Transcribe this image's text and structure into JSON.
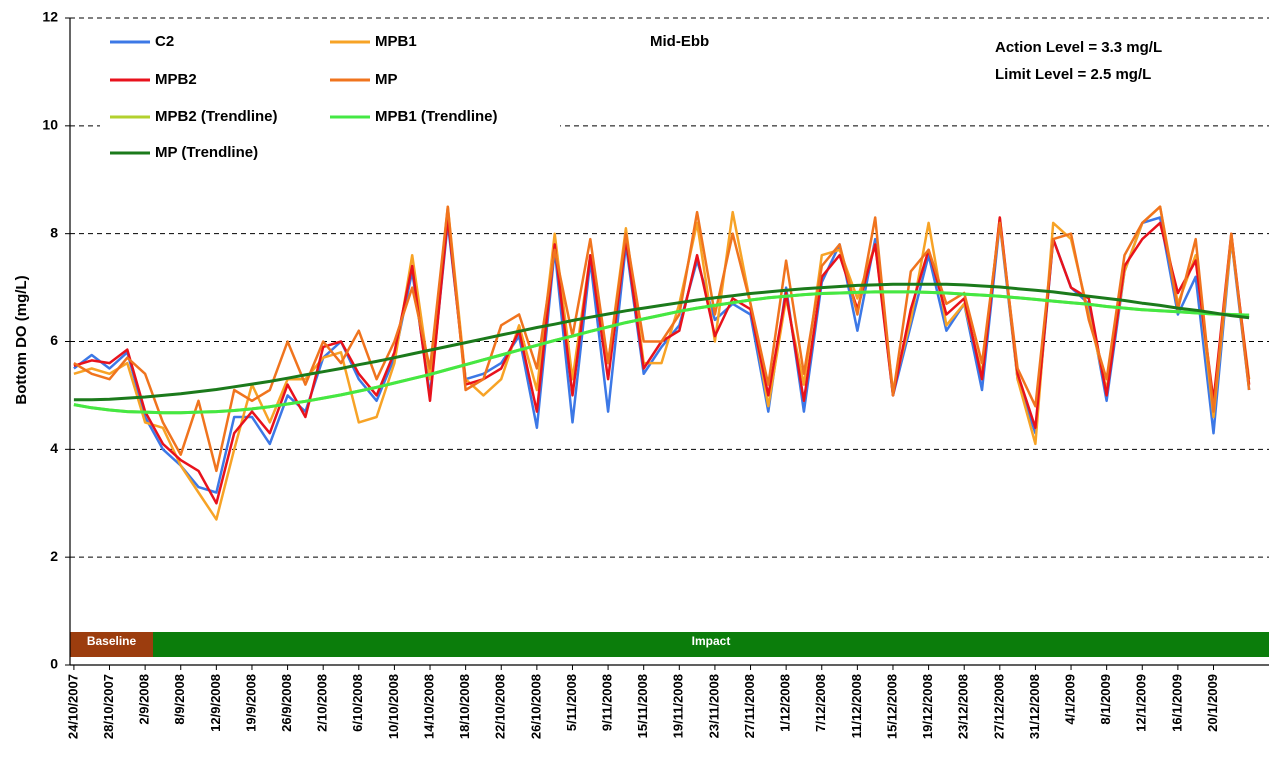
{
  "chart_data": {
    "type": "line",
    "y_label": "Bottom DO (mg/L)",
    "annotations": [
      "Mid-Ebb",
      "Action Level = 3.3 mg/L",
      "Limit Level = 2.5 mg/L"
    ],
    "phases": [
      {
        "label": "Baseline",
        "color": "#9c3d0e"
      },
      {
        "label": "Impact",
        "color": "#0b7d0b"
      }
    ],
    "ylim": [
      0,
      12
    ],
    "yticks": [
      0,
      2,
      4,
      6,
      8,
      10,
      12
    ],
    "grid": true,
    "legend": "top-left",
    "categories": [
      "24/10/2007",
      null,
      "28/10/2007",
      null,
      "2/9/2008",
      null,
      "8/9/2008",
      null,
      "12/9/2008",
      null,
      "19/9/2008",
      null,
      "26/9/2008",
      null,
      "2/10/2008",
      null,
      "6/10/2008",
      null,
      "10/10/2008",
      null,
      "14/10/2008",
      null,
      "18/10/2008",
      null,
      "22/10/2008",
      null,
      "26/10/2008",
      null,
      "5/11/2008",
      null,
      "9/11/2008",
      null,
      "15/11/2008",
      null,
      "19/11/2008",
      null,
      "23/11/2008",
      null,
      "27/11/2008",
      null,
      "1/12/2008",
      null,
      "7/12/2008",
      null,
      "11/12/2008",
      null,
      "15/12/2008",
      null,
      "19/12/2008",
      null,
      "23/12/2008",
      null,
      "27/12/2008",
      null,
      "31/12/2008",
      null,
      "4/1/2009",
      null,
      "8/1/2009",
      null,
      "12/1/2009",
      null,
      "16/1/2009",
      null,
      "20/1/2009",
      null,
      null
    ],
    "series": [
      {
        "name": "C2",
        "color": "#3c78e6",
        "width": 2.5,
        "values": [
          5.5,
          5.75,
          5.5,
          5.8,
          4.6,
          4.0,
          3.7,
          3.3,
          3.2,
          4.6,
          4.6,
          4.1,
          5.0,
          4.7,
          5.7,
          6.0,
          5.3,
          4.9,
          5.7,
          7.3,
          5.0,
          8.2,
          5.3,
          5.4,
          5.6,
          6.1,
          4.4,
          7.7,
          4.5,
          7.5,
          4.7,
          7.8,
          5.4,
          5.9,
          6.3,
          7.5,
          6.4,
          6.7,
          6.5,
          4.7,
          7.0,
          4.7,
          7.1,
          7.8,
          6.2,
          7.9,
          5.0,
          6.3,
          7.6,
          6.2,
          6.7,
          5.1,
          8.2,
          5.3,
          4.3,
          7.9,
          7.0,
          6.7,
          4.9,
          7.3,
          8.2,
          8.3,
          6.5,
          7.2,
          4.3,
          7.9,
          5.1
        ]
      },
      {
        "name": "MPB1",
        "color": "#f7a326",
        "width": 2.5,
        "values": [
          5.4,
          5.5,
          5.4,
          5.6,
          4.5,
          4.4,
          3.7,
          3.2,
          2.7,
          4.0,
          5.2,
          4.5,
          5.3,
          5.3,
          5.7,
          5.8,
          4.5,
          4.6,
          5.6,
          7.6,
          5.3,
          8.5,
          5.3,
          5.0,
          5.3,
          6.3,
          5.1,
          8.0,
          5.3,
          7.6,
          5.6,
          8.1,
          5.6,
          5.6,
          6.7,
          8.2,
          6.0,
          8.4,
          6.7,
          4.8,
          6.8,
          5.2,
          7.6,
          7.7,
          6.8,
          7.8,
          5.1,
          6.4,
          8.2,
          6.3,
          6.7,
          5.4,
          8.3,
          5.3,
          4.1,
          8.2,
          7.9,
          6.5,
          5.1,
          7.3,
          8.2,
          8.5,
          6.7,
          7.6,
          4.6,
          7.9,
          5.3
        ]
      },
      {
        "name": "MPB2",
        "color": "#e8121c",
        "width": 2.5,
        "values": [
          5.55,
          5.65,
          5.6,
          5.85,
          4.7,
          4.1,
          3.8,
          3.6,
          3.0,
          4.3,
          4.7,
          4.3,
          5.2,
          4.6,
          5.9,
          6.0,
          5.4,
          5.0,
          5.8,
          7.4,
          4.9,
          8.3,
          5.2,
          5.3,
          5.5,
          6.2,
          4.7,
          7.8,
          5.0,
          7.6,
          5.3,
          7.9,
          5.5,
          6.0,
          6.2,
          7.6,
          6.1,
          6.8,
          6.6,
          5.0,
          6.9,
          4.9,
          7.2,
          7.6,
          6.6,
          7.8,
          5.0,
          6.6,
          7.7,
          6.5,
          6.8,
          5.3,
          8.3,
          5.4,
          4.4,
          7.9,
          7.0,
          6.8,
          5.0,
          7.4,
          7.9,
          8.2,
          6.9,
          7.5,
          4.9,
          8.0,
          5.2
        ]
      },
      {
        "name": "MP",
        "color": "#f0741e",
        "width": 2.5,
        "values": [
          5.6,
          5.4,
          5.3,
          5.7,
          5.4,
          4.5,
          3.9,
          4.9,
          3.6,
          5.1,
          4.9,
          5.1,
          6.0,
          5.2,
          6.0,
          5.6,
          6.2,
          5.3,
          6.0,
          7.0,
          5.5,
          8.5,
          5.1,
          5.3,
          6.3,
          6.5,
          5.5,
          7.7,
          6.1,
          7.9,
          5.6,
          8.0,
          6.0,
          6.0,
          6.5,
          8.4,
          6.5,
          8.0,
          6.7,
          5.2,
          7.5,
          5.4,
          7.4,
          7.8,
          6.5,
          8.3,
          5.0,
          7.3,
          7.7,
          6.7,
          6.9,
          5.6,
          8.2,
          5.5,
          4.8,
          7.9,
          8.0,
          6.4,
          5.3,
          7.6,
          8.2,
          8.5,
          6.6,
          7.9,
          4.7,
          8.0,
          5.1
        ]
      },
      {
        "name": "MPB2 (Trendline)",
        "color": "#b3d12f",
        "width": 3,
        "values": [
          4.83,
          4.77,
          4.73,
          4.7,
          4.69,
          4.68,
          4.68,
          4.69,
          4.7,
          4.72,
          4.75,
          4.79,
          4.84,
          4.89,
          4.95,
          5.01,
          5.08,
          5.15,
          5.23,
          5.31,
          5.39,
          5.48,
          5.57,
          5.66,
          5.75,
          5.84,
          5.93,
          6.02,
          6.1,
          6.19,
          6.27,
          6.35,
          6.42,
          6.49,
          6.56,
          6.62,
          6.67,
          6.72,
          6.77,
          6.81,
          6.84,
          6.87,
          6.89,
          6.9,
          6.91,
          6.92,
          6.92,
          6.92,
          6.91,
          6.9,
          6.88,
          6.86,
          6.84,
          6.81,
          6.78,
          6.75,
          6.72,
          6.69,
          6.65,
          6.62,
          6.59,
          6.57,
          6.55,
          6.53,
          6.51,
          6.5,
          6.49
        ]
      },
      {
        "name": "MPB1 (Trendline)",
        "color": "#44e844",
        "width": 3,
        "values": [
          4.83,
          4.77,
          4.73,
          4.7,
          4.69,
          4.68,
          4.68,
          4.69,
          4.7,
          4.72,
          4.75,
          4.79,
          4.84,
          4.89,
          4.95,
          5.01,
          5.08,
          5.15,
          5.23,
          5.31,
          5.39,
          5.48,
          5.57,
          5.66,
          5.75,
          5.84,
          5.93,
          6.02,
          6.1,
          6.19,
          6.27,
          6.35,
          6.42,
          6.49,
          6.56,
          6.62,
          6.67,
          6.72,
          6.77,
          6.81,
          6.84,
          6.87,
          6.89,
          6.9,
          6.91,
          6.92,
          6.92,
          6.92,
          6.91,
          6.9,
          6.88,
          6.86,
          6.84,
          6.81,
          6.78,
          6.75,
          6.72,
          6.69,
          6.65,
          6.62,
          6.59,
          6.57,
          6.55,
          6.53,
          6.51,
          6.5,
          6.49
        ]
      },
      {
        "name": "MP (Trendline)",
        "color": "#1b7a1b",
        "width": 3,
        "values": [
          4.92,
          4.92,
          4.93,
          4.95,
          4.97,
          5.0,
          5.03,
          5.07,
          5.11,
          5.16,
          5.21,
          5.26,
          5.32,
          5.38,
          5.44,
          5.5,
          5.57,
          5.63,
          5.7,
          5.77,
          5.84,
          5.91,
          5.98,
          6.05,
          6.12,
          6.19,
          6.26,
          6.32,
          6.39,
          6.45,
          6.51,
          6.57,
          6.62,
          6.67,
          6.72,
          6.77,
          6.81,
          6.85,
          6.89,
          6.92,
          6.95,
          6.98,
          7.0,
          7.02,
          7.04,
          7.05,
          7.06,
          7.06,
          7.06,
          7.06,
          7.05,
          7.03,
          7.01,
          6.98,
          6.95,
          6.92,
          6.88,
          6.84,
          6.8,
          6.76,
          6.71,
          6.67,
          6.62,
          6.58,
          6.53,
          6.48,
          6.44
        ]
      }
    ]
  }
}
